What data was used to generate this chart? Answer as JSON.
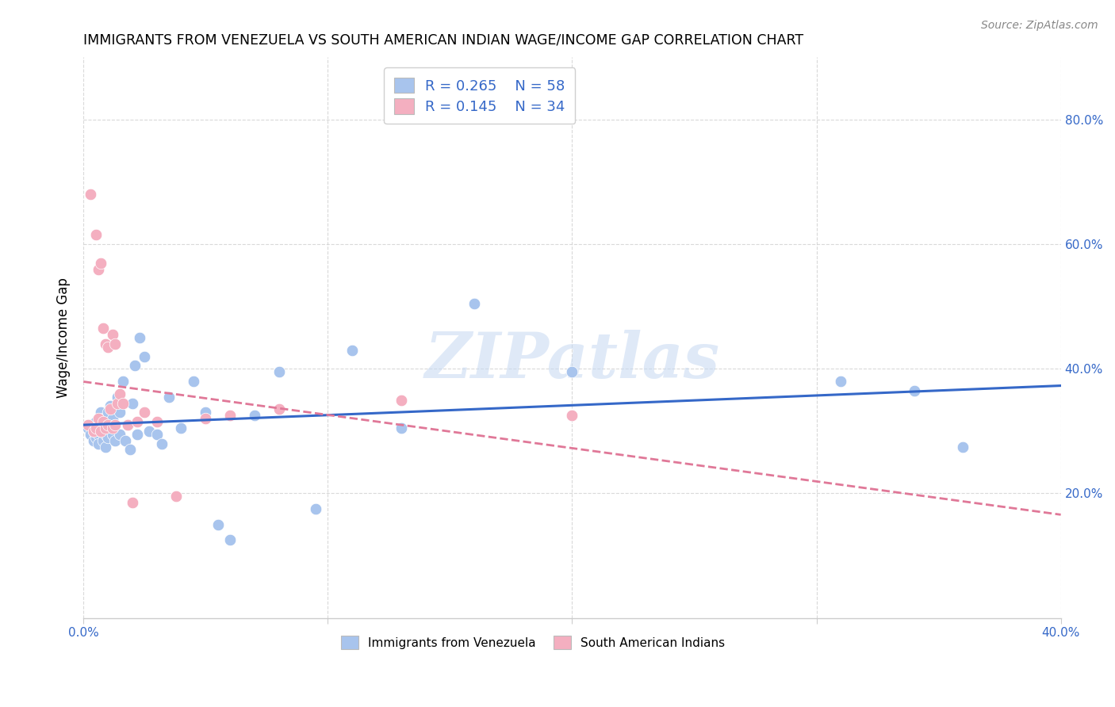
{
  "title": "IMMIGRANTS FROM VENEZUELA VS SOUTH AMERICAN INDIAN WAGE/INCOME GAP CORRELATION CHART",
  "source": "Source: ZipAtlas.com",
  "ylabel": "Wage/Income Gap",
  "xlim": [
    0.0,
    0.4
  ],
  "ylim": [
    0.0,
    0.9
  ],
  "R_blue": 0.265,
  "N_blue": 58,
  "R_pink": 0.145,
  "N_pink": 34,
  "blue_color": "#a8c4ed",
  "pink_color": "#f4afc0",
  "blue_line_color": "#3568c8",
  "pink_line_color": "#e07898",
  "watermark": "ZIPatlas",
  "blue_scatter_x": [
    0.002,
    0.003,
    0.003,
    0.004,
    0.004,
    0.005,
    0.005,
    0.006,
    0.006,
    0.006,
    0.007,
    0.007,
    0.007,
    0.008,
    0.008,
    0.009,
    0.009,
    0.009,
    0.01,
    0.01,
    0.01,
    0.011,
    0.011,
    0.012,
    0.012,
    0.013,
    0.013,
    0.014,
    0.015,
    0.015,
    0.016,
    0.017,
    0.018,
    0.019,
    0.02,
    0.021,
    0.022,
    0.023,
    0.025,
    0.027,
    0.03,
    0.032,
    0.035,
    0.04,
    0.045,
    0.05,
    0.055,
    0.06,
    0.07,
    0.08,
    0.095,
    0.11,
    0.13,
    0.16,
    0.2,
    0.31,
    0.34,
    0.36
  ],
  "blue_scatter_y": [
    0.305,
    0.295,
    0.31,
    0.285,
    0.3,
    0.29,
    0.315,
    0.295,
    0.305,
    0.28,
    0.31,
    0.3,
    0.33,
    0.285,
    0.32,
    0.275,
    0.295,
    0.315,
    0.3,
    0.29,
    0.33,
    0.305,
    0.34,
    0.295,
    0.32,
    0.285,
    0.31,
    0.355,
    0.295,
    0.33,
    0.38,
    0.285,
    0.31,
    0.27,
    0.345,
    0.405,
    0.295,
    0.45,
    0.42,
    0.3,
    0.295,
    0.28,
    0.355,
    0.305,
    0.38,
    0.33,
    0.15,
    0.125,
    0.325,
    0.395,
    0.175,
    0.43,
    0.305,
    0.505,
    0.395,
    0.38,
    0.365,
    0.275
  ],
  "pink_scatter_x": [
    0.002,
    0.003,
    0.004,
    0.005,
    0.005,
    0.006,
    0.006,
    0.007,
    0.007,
    0.008,
    0.008,
    0.009,
    0.009,
    0.01,
    0.01,
    0.011,
    0.012,
    0.012,
    0.013,
    0.013,
    0.014,
    0.015,
    0.016,
    0.018,
    0.02,
    0.022,
    0.025,
    0.03,
    0.038,
    0.05,
    0.06,
    0.08,
    0.13,
    0.2
  ],
  "pink_scatter_y": [
    0.31,
    0.68,
    0.3,
    0.305,
    0.615,
    0.32,
    0.56,
    0.3,
    0.57,
    0.315,
    0.465,
    0.305,
    0.44,
    0.31,
    0.435,
    0.335,
    0.305,
    0.455,
    0.31,
    0.44,
    0.345,
    0.36,
    0.345,
    0.31,
    0.185,
    0.315,
    0.33,
    0.315,
    0.195,
    0.32,
    0.325,
    0.335,
    0.35,
    0.325
  ]
}
